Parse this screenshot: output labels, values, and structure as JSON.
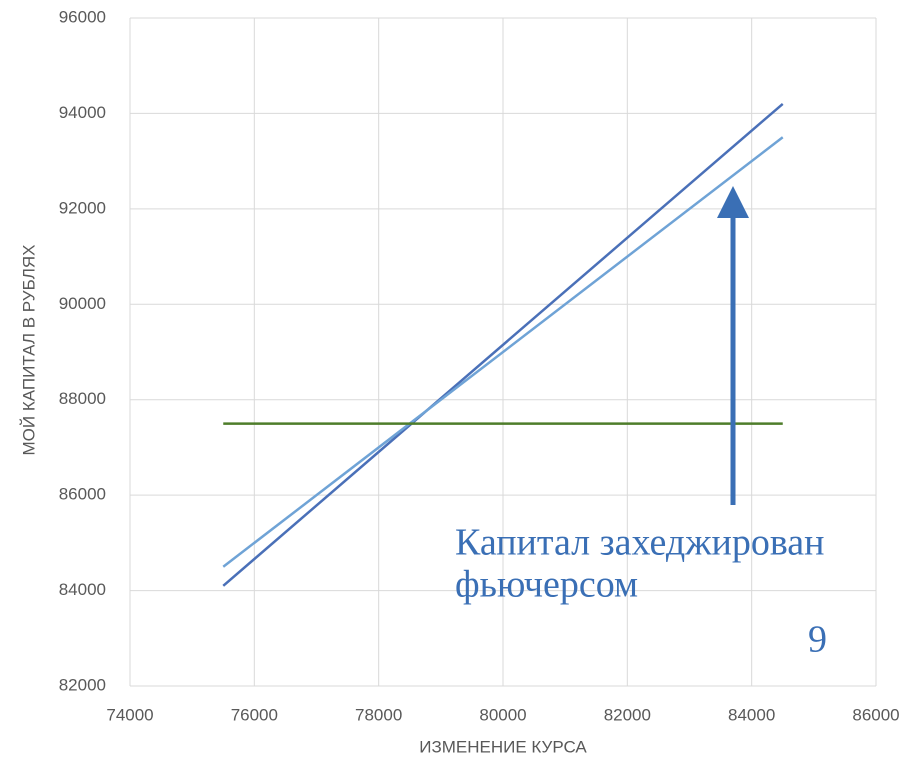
{
  "chart_data": {
    "type": "line",
    "y_label": "МОЙ КАПИТАЛ В РУБЛЯХ",
    "x_label": "ИЗМЕНЕНИЕ КУРСА",
    "x": [
      75500,
      84500
    ],
    "series": [
      {
        "color": "#4a70b8",
        "values": [
          84100,
          94200
        ]
      },
      {
        "color": "#6fa3d6",
        "values": [
          84500,
          93500
        ]
      },
      {
        "color": "#4e7d2a",
        "values": [
          87500,
          87500
        ]
      }
    ],
    "xlim": [
      74000,
      86000
    ],
    "xticks": [
      74000,
      76000,
      78000,
      80000,
      82000,
      84000,
      86000
    ],
    "ylim": [
      82000,
      96000
    ],
    "yticks": [
      82000,
      84000,
      86000,
      88000,
      90000,
      92000,
      94000,
      96000
    ],
    "grid": true,
    "annotation": [
      "Капитал захеджирован",
      "фьючерсом"
    ],
    "page_number": "9"
  }
}
